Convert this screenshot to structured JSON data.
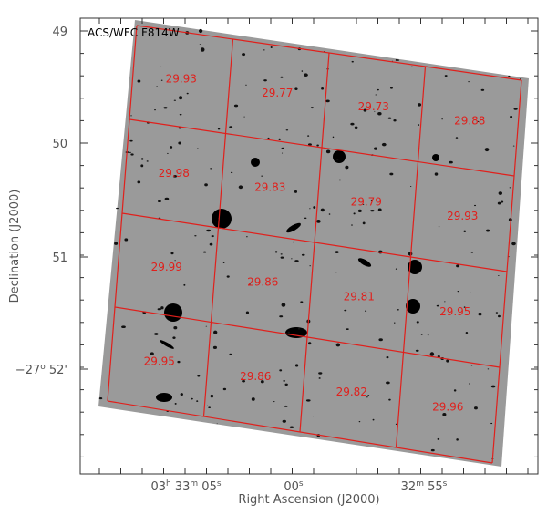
{
  "image": {
    "filter_label": "ACS/WFC F814W",
    "depth_grid": [
      [
        29.93,
        29.77,
        29.73,
        29.88
      ],
      [
        29.98,
        29.83,
        29.79,
        29.93
      ],
      [
        29.99,
        29.86,
        29.81,
        29.95
      ],
      [
        29.95,
        29.86,
        29.82,
        29.96
      ]
    ]
  },
  "y_axis": {
    "title": "Declination (J2000)",
    "ticks": [
      [
        "49"
      ],
      [
        "50"
      ],
      [
        "51"
      ],
      [
        "−27",
        "o",
        " 52'"
      ]
    ]
  },
  "x_axis": {
    "title": "Right Ascension (J2000)",
    "ticks": [
      [
        "03",
        "h",
        " 33",
        "m",
        " 05",
        "s"
      ],
      [
        "00",
        "s"
      ],
      [
        "32",
        "m",
        " 55",
        "s"
      ]
    ]
  }
}
